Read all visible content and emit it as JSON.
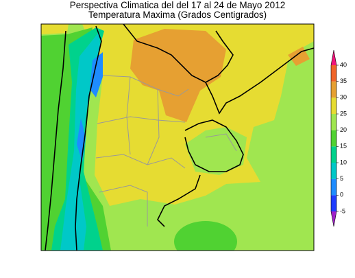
{
  "title": [
    "Perspectiva Climatica del del 17 al 24 de Mayo 2012",
    "Temperatura Maxima (Grados Centigrados)"
  ],
  "colorbar": {
    "ticks": [
      -5,
      0,
      5,
      10,
      15,
      20,
      25,
      30,
      35,
      40
    ],
    "colors": [
      "#a020c8",
      "#1e3cff",
      "#1e8cff",
      "#00c8c8",
      "#00d28c",
      "#50d232",
      "#a0e650",
      "#e6dc32",
      "#e6a032",
      "#f06428",
      "#f0147a"
    ]
  }
}
